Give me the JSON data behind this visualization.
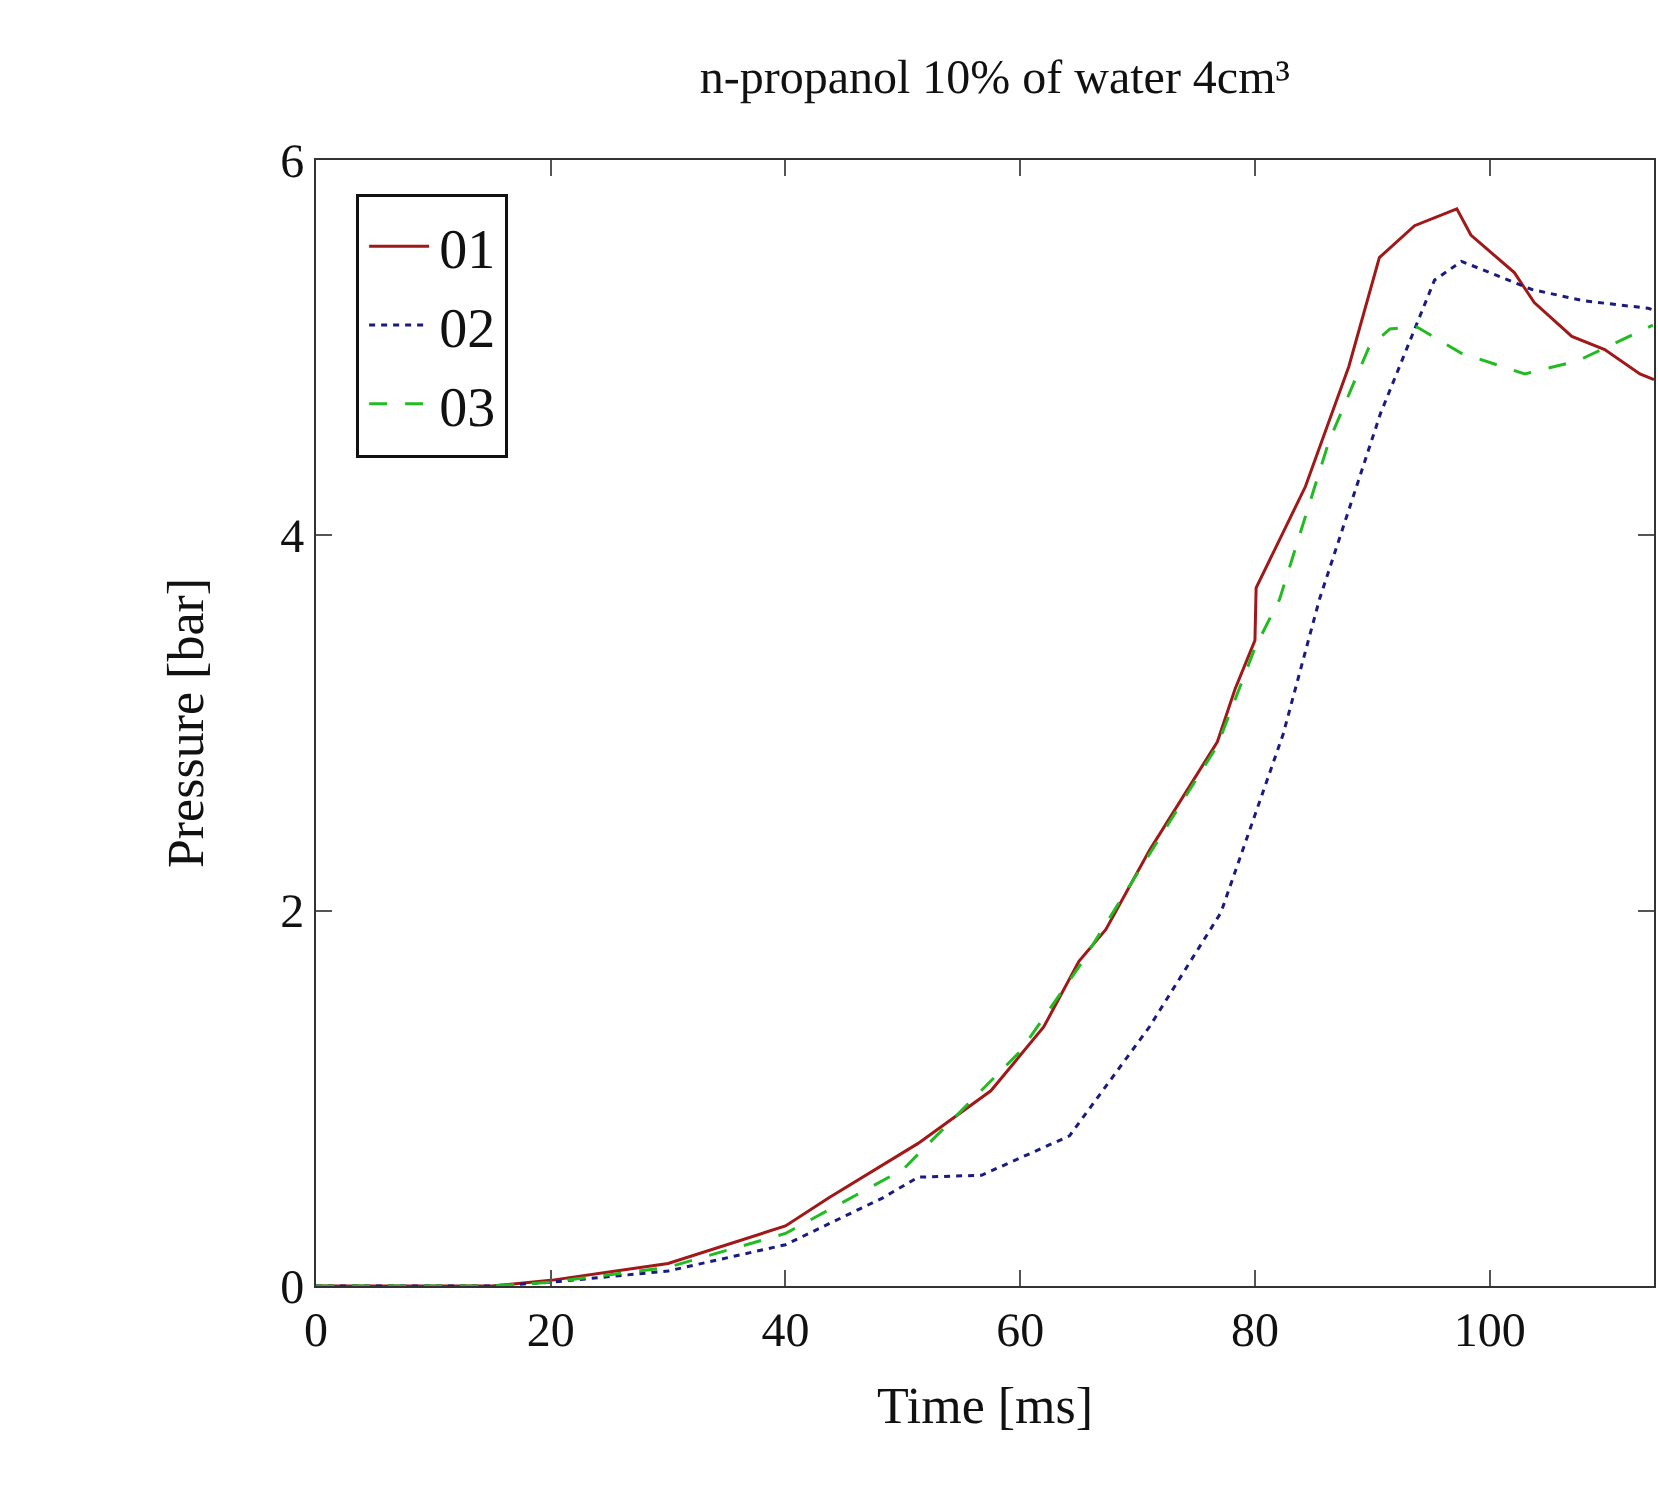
{
  "chart_data": {
    "type": "line",
    "title": "n-propanol 10% of water 4cm³",
    "xlabel": "Time [ms]",
    "ylabel": "Pressure [bar]",
    "xlim": [
      0,
      114
    ],
    "xticks": [
      0,
      20,
      40,
      60,
      80,
      100
    ],
    "ylim": [
      0,
      6
    ],
    "yticks": [
      0,
      2,
      4,
      6
    ],
    "legend": "top left",
    "marker": "none",
    "series": [
      {
        "name": "01",
        "color": "#a01818",
        "line_style": "solid",
        "x": [
          0,
          15,
          20,
          30,
          40,
          43.7,
          51.3,
          57.5,
          62,
          65,
          67.3,
          71,
          76.8,
          78.3,
          80,
          80.1,
          84.3,
          88,
          90.6,
          93.6,
          97.2,
          98.4,
          102.1,
          103.8,
          107,
          109.8,
          112.8,
          114
        ],
        "values": [
          0,
          0,
          0.03,
          0.12,
          0.32,
          0.47,
          0.76,
          1.04,
          1.38,
          1.73,
          1.9,
          2.32,
          2.9,
          3.18,
          3.44,
          3.72,
          4.26,
          4.9,
          5.48,
          5.65,
          5.74,
          5.6,
          5.4,
          5.24,
          5.06,
          4.99,
          4.86,
          4.83
        ]
      },
      {
        "name": "02",
        "color": "#1a1a80",
        "line_style": "dotted",
        "x": [
          0,
          15,
          20,
          30,
          40,
          48.3,
          51.3,
          56.7,
          64.2,
          71,
          77.1,
          82.4,
          85.5,
          90.7,
          95.3,
          97.6,
          103.6,
          108,
          113.5,
          114
        ],
        "values": [
          0,
          0,
          0.02,
          0.08,
          0.22,
          0.47,
          0.58,
          0.59,
          0.8,
          1.38,
          1.99,
          2.94,
          3.66,
          4.65,
          5.36,
          5.46,
          5.31,
          5.25,
          5.21,
          5.2
        ]
      },
      {
        "name": "03",
        "color": "#22bb22",
        "line_style": "dashed",
        "x": [
          0,
          15,
          20,
          30,
          40,
          50,
          60,
          65,
          71,
          76.8,
          80,
          82.1,
          86.3,
          89.7,
          91.5,
          93.8,
          97.6,
          103,
          107.5,
          113.9
        ],
        "values": [
          0,
          0,
          0.02,
          0.1,
          0.28,
          0.62,
          1.25,
          1.7,
          2.3,
          2.88,
          3.4,
          3.66,
          4.5,
          5.0,
          5.1,
          5.11,
          4.97,
          4.86,
          4.93,
          5.12
        ]
      }
    ]
  }
}
